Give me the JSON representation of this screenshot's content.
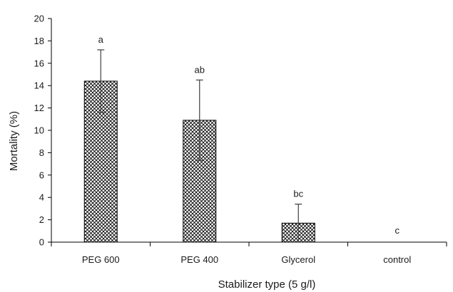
{
  "chart_data": {
    "type": "bar",
    "categories": [
      "PEG 600",
      "PEG 400",
      "Glycerol",
      "control"
    ],
    "values": [
      14.4,
      10.9,
      1.7,
      0
    ],
    "error": [
      2.8,
      3.6,
      1.7,
      0
    ],
    "significance": [
      "a",
      "ab",
      "bc",
      "c"
    ],
    "title": "",
    "xlabel": "Stabilizer  type (5 g/l)",
    "ylabel": "Mortality (%)",
    "ylim": [
      0,
      20
    ],
    "yticks": [
      "0",
      "2",
      "4",
      "6",
      "8",
      "10",
      "12",
      "14",
      "16",
      "18",
      "20"
    ],
    "grid": false,
    "legend": "none",
    "bar_fill": "crosshatch",
    "colors": {
      "bar_edge": "#000000",
      "hatch": "#000000",
      "axis": "#000000",
      "error_bar": "#404040"
    }
  }
}
